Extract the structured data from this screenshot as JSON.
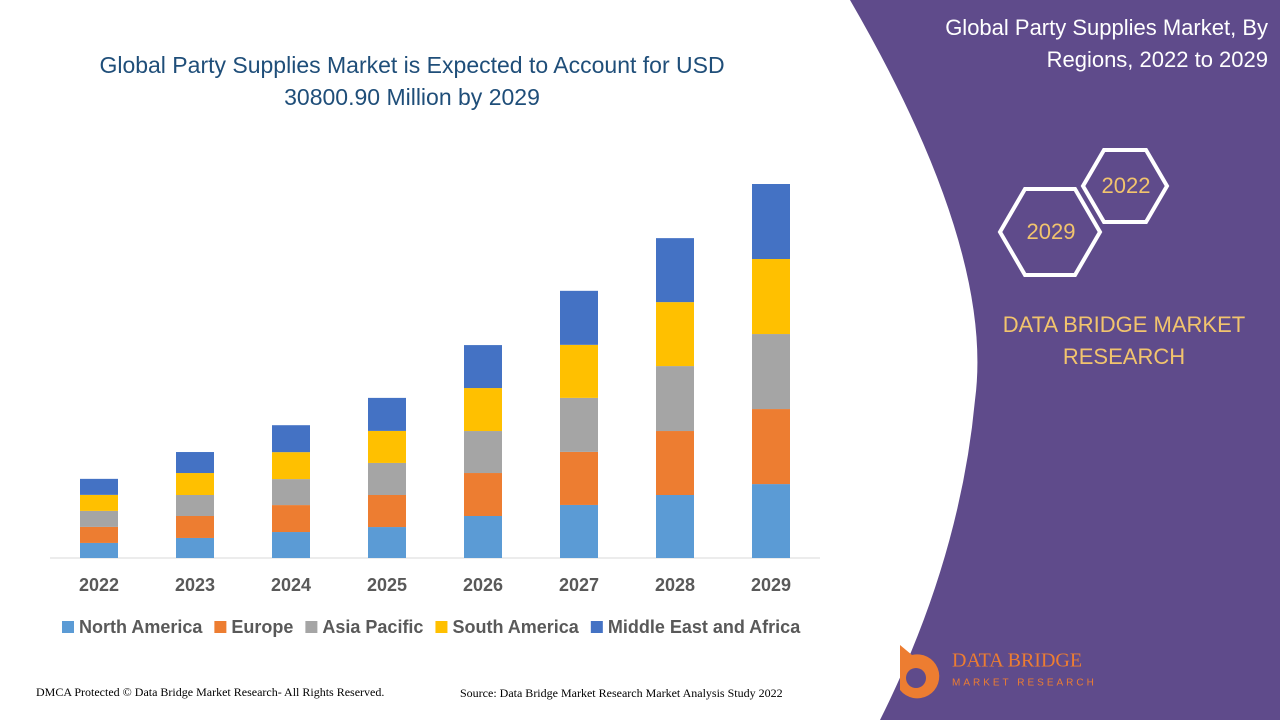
{
  "chart_data": {
    "type": "bar",
    "stacked": true,
    "title": [
      "Global Party Supplies Market is Expected to Account for USD",
      "30800.90 Million by 2029"
    ],
    "categories": [
      "2022",
      "2023",
      "2024",
      "2025",
      "2026",
      "2027",
      "2028",
      "2029"
    ],
    "series": [
      {
        "name": "North America",
        "color": "#5b9bd5",
        "values": [
          1240,
          1650,
          2140,
          2550,
          3460,
          4370,
          5190,
          6090
        ]
      },
      {
        "name": "Europe",
        "color": "#ed7d31",
        "values": [
          1320,
          1810,
          2220,
          2640,
          3540,
          4370,
          5270,
          6180
        ]
      },
      {
        "name": "Asia Pacific",
        "color": "#a5a5a5",
        "values": [
          1320,
          1730,
          2140,
          2640,
          3460,
          4450,
          5350,
          6180
        ]
      },
      {
        "name": "South America",
        "color": "#ffc000",
        "values": [
          1320,
          1810,
          2220,
          2640,
          3540,
          4370,
          5270,
          6180
        ]
      },
      {
        "name": "Middle East and Africa",
        "color": "#4472c4",
        "values": [
          1320,
          1730,
          2220,
          2720,
          3540,
          4450,
          5270,
          6180
        ]
      }
    ]
  },
  "panel": {
    "title": [
      "Global Party Supplies Market, By",
      "Regions, 2022 to 2029"
    ],
    "years": [
      "2022",
      "2029"
    ],
    "brand": [
      "DATA BRIDGE MARKET",
      "RESEARCH"
    ]
  },
  "logo": {
    "name": "DATA BRIDGE",
    "tagline": "MARKET RESEARCH"
  },
  "footer": {
    "copyright": "DMCA Protected © Data Bridge Market Research- All Rights Reserved.",
    "source": "Source: Data Bridge Market Research Market Analysis Study 2022"
  }
}
